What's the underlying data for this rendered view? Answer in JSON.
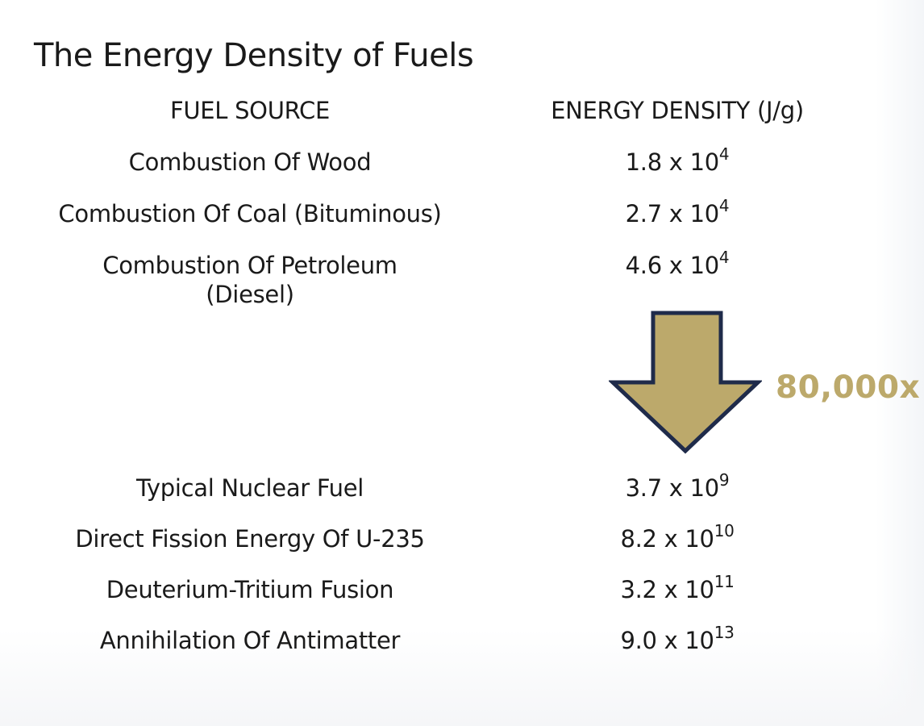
{
  "title": "The Energy Density of Fuels",
  "headers": {
    "fuel": "FUEL SOURCE",
    "energy": "ENERGY DENSITY (J/g)"
  },
  "rows": [
    {
      "fuel_line1": "Combustion Of Wood",
      "fuel_line2": "",
      "mantissa": "1.8 x 10",
      "exponent": "4"
    },
    {
      "fuel_line1": "Combustion Of Coal (Bituminous)",
      "fuel_line2": "",
      "mantissa": "2.7 x 10",
      "exponent": "4"
    },
    {
      "fuel_line1": "Combustion Of Petroleum",
      "fuel_line2": "(Diesel)",
      "mantissa": "4.6 x 10",
      "exponent": "4"
    },
    {
      "fuel_line1": "Typical Nuclear Fuel",
      "fuel_line2": "",
      "mantissa": "3.7 x 10",
      "exponent": "9"
    },
    {
      "fuel_line1": "Direct Fission Energy Of U-235",
      "fuel_line2": "",
      "mantissa": "8.2 x 10",
      "exponent": "10"
    },
    {
      "fuel_line1": "Deuterium-Tritium Fusion",
      "fuel_line2": "",
      "mantissa": "3.2 x 10",
      "exponent": "11"
    },
    {
      "fuel_line1": "Annihilation Of Antimatter",
      "fuel_line2": "",
      "mantissa": "9.0 x 10",
      "exponent": "13"
    }
  ],
  "arrow": {
    "label": "80,000x",
    "icon": "down-arrow-icon",
    "fill": "#bca96b",
    "stroke": "#1f2b4a"
  }
}
